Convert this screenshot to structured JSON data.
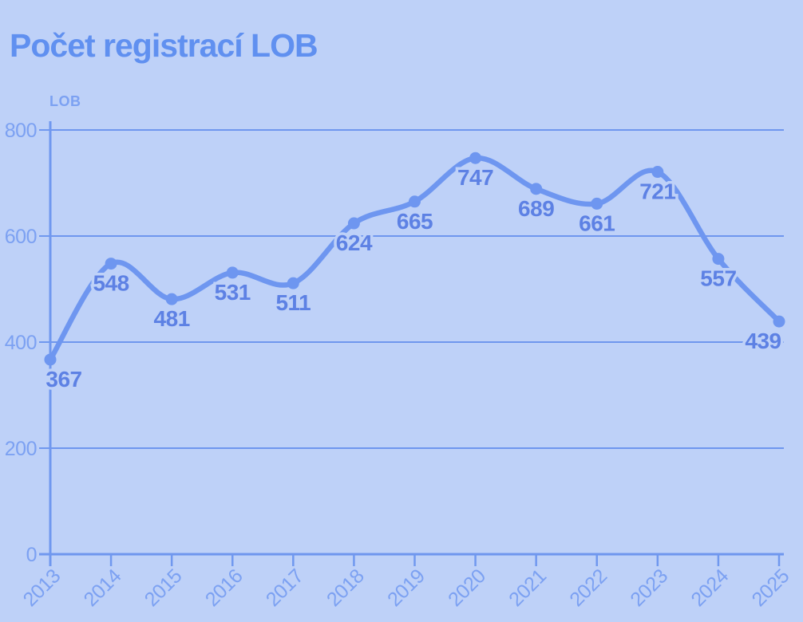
{
  "colors": {
    "bg": "#bed1f8",
    "line": "#6e96f0",
    "marker": "#6e96f0",
    "grid": "#6f96ee",
    "axis": "#7098ef",
    "tick_text": "#7ca1f2",
    "label_text": "#5d81e4",
    "title_text": "#6090f0"
  },
  "chart_data": {
    "type": "line",
    "title": "Počet registrací LOB",
    "ylabel": "LOB",
    "xlabel": "",
    "categories": [
      "2013",
      "2014",
      "2015",
      "2016",
      "2017",
      "2018",
      "2019",
      "2020",
      "2021",
      "2022",
      "2023",
      "2024",
      "2025"
    ],
    "series": [
      {
        "name": "LOB",
        "values": [
          367,
          548,
          481,
          531,
          511,
          624,
          665,
          747,
          689,
          661,
          721,
          557,
          439
        ]
      }
    ],
    "ylim": [
      0,
      800
    ],
    "yticks": [
      0,
      200,
      400,
      600,
      800
    ],
    "grid": true,
    "legend": false,
    "marker": "circle",
    "data_labels": true,
    "x_tick_rotation": -45
  }
}
